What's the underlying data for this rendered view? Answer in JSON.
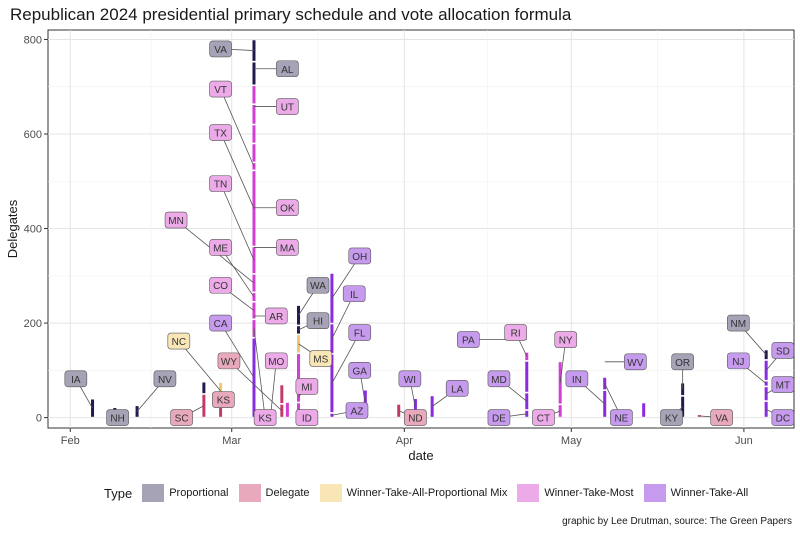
{
  "title": "Republican 2024 presidential primary schedule and vote allocation formula",
  "caption": "graphic by Lee Drutman, source: The Green Papers",
  "colors": {
    "Proportional": "#211a4e",
    "Delegate": "#c43b6a",
    "Winner-Take-All-Proportional Mix": "#f1c96a",
    "Winner-Take-Most": "#d23fd2",
    "Winner-Take-All": "#8a2be2"
  },
  "label_fills": {
    "Proportional": "#a6a3b6",
    "Delegate": "#e8a9bc",
    "Winner-Take-All-Proportional Mix": "#f8e6b6",
    "Winner-Take-Most": "#ecabe8",
    "Winner-Take-All": "#c69bee"
  },
  "legend": {
    "title": "Type",
    "items": [
      "Proportional",
      "Delegate",
      "Winner-Take-All-Proportional Mix",
      "Winner-Take-Most",
      "Winner-Take-All"
    ]
  },
  "chart_data": {
    "type": "bar",
    "title": "Republican 2024 presidential primary schedule and vote allocation formula",
    "xlabel": "date",
    "ylabel": "Delegates",
    "xlim_days": [
      -4,
      130
    ],
    "ylim": [
      -22,
      820
    ],
    "x_ticks": [
      {
        "label": "Feb",
        "day": 0
      },
      {
        "label": "Mar",
        "day": 29
      },
      {
        "label": "Apr",
        "day": 60
      },
      {
        "label": "May",
        "day": 90
      },
      {
        "label": "Jun",
        "day": 121
      }
    ],
    "y_ticks": [
      0,
      200,
      400,
      600,
      800
    ],
    "note": "day = days since Feb 1, 2024; each state is a stacked segment on its primary date",
    "segments": [
      {
        "state": "IA",
        "day": 4,
        "y0": 0,
        "y1": 40,
        "type": "Proportional",
        "label_day": 1,
        "label_y": 82
      },
      {
        "state": "NH",
        "day": 8,
        "y0": 0,
        "y1": 22,
        "type": "Proportional",
        "label_day": 8.5,
        "label_y": 0
      },
      {
        "state": "NV",
        "day": 12,
        "y0": 0,
        "y1": 26,
        "type": "Proportional",
        "label_day": 17,
        "label_y": 82
      },
      {
        "state": "SC",
        "day": 24,
        "y0": 0,
        "y1": 50,
        "type": "Delegate",
        "label_day": 20,
        "label_y": 0
      },
      {
        "state": "NV",
        "day": 24,
        "y0": 50,
        "y1": 76,
        "type": "Proportional",
        "label_day": null,
        "label_y": null
      },
      {
        "state": "KS",
        "day": 27,
        "y0": 0,
        "y1": 38,
        "type": "Delegate",
        "label_day": 27.5,
        "label_y": 38
      },
      {
        "state": "NC",
        "day": 27,
        "y0": 38,
        "y1": 75,
        "type": "Winner-Take-All-Proportional Mix",
        "label_day": 19.5,
        "label_y": 162
      },
      {
        "state": "CA",
        "day": 33,
        "y0": 0,
        "y1": 169,
        "type": "Winner-Take-All",
        "label_day": 27,
        "label_y": 200
      },
      {
        "state": "KS",
        "day": 33,
        "y0": 169,
        "y1": 208,
        "type": "Winner-Take-Most",
        "label_day": 35,
        "label_y": 0
      },
      {
        "state": "CO",
        "day": 33,
        "y0": 208,
        "y1": 245,
        "type": "Winner-Take-Most",
        "label_day": 27,
        "label_y": 280
      },
      {
        "state": "ME",
        "day": 33,
        "y0": 245,
        "y1": 265,
        "type": "Winner-Take-Most",
        "label_day": 27,
        "label_y": 360
      },
      {
        "state": "MN",
        "day": 33,
        "y0": 265,
        "y1": 304,
        "type": "Winner-Take-Most",
        "label_day": 19,
        "label_y": 418
      },
      {
        "state": "TN",
        "day": 33,
        "y0": 304,
        "y1": 362,
        "type": "Winner-Take-Most",
        "label_day": 27,
        "label_y": 495
      },
      {
        "state": "TX",
        "day": 33,
        "y0": 362,
        "y1": 523,
        "type": "Winner-Take-Most",
        "label_day": 27,
        "label_y": 603
      },
      {
        "state": "VT",
        "day": 33,
        "y0": 523,
        "y1": 540,
        "type": "Winner-Take-Most",
        "label_day": 27,
        "label_y": 695
      },
      {
        "state": "UT",
        "day": 33,
        "y0": 540,
        "y1": 580,
        "type": "Winner-Take-Most",
        "label_day": null,
        "label_y": null
      },
      {
        "state": "AR",
        "day": 33,
        "y0": 580,
        "y1": 620,
        "type": "Winner-Take-Most",
        "label_day": null,
        "label_y": null
      },
      {
        "state": "OK",
        "day": 33,
        "y0": 620,
        "y1": 663,
        "type": "Winner-Take-Most",
        "label_day": null,
        "label_y": null
      },
      {
        "state": "MA",
        "day": 33,
        "y0": 663,
        "y1": 703,
        "type": "Winner-Take-Most",
        "label_day": null,
        "label_y": null
      },
      {
        "state": "AL",
        "day": 33,
        "y0": 703,
        "y1": 753,
        "type": "Proportional",
        "label_day": null,
        "label_y": null
      },
      {
        "state": "VA",
        "day": 33,
        "y0": 753,
        "y1": 800,
        "type": "Proportional",
        "label_day": 27,
        "label_y": 780
      },
      {
        "state": "UT-lbl",
        "day": 33,
        "y0": 0,
        "y1": 0,
        "type": "Winner-Take-Most",
        "label_day": 39,
        "label_y": 658
      },
      {
        "state": "AL-lbl",
        "day": 33,
        "y0": 0,
        "y1": 0,
        "type": "Proportional",
        "label_day": 39,
        "label_y": 738
      },
      {
        "state": "OK-lbl",
        "day": 33,
        "y0": 0,
        "y1": 0,
        "type": "Winner-Take-Most",
        "label_day": 39,
        "label_y": 444
      },
      {
        "state": "MA-lbl",
        "day": 33,
        "y0": 0,
        "y1": 0,
        "type": "Winner-Take-Most",
        "label_day": 39,
        "label_y": 360
      },
      {
        "state": "AR-lbl",
        "day": 33,
        "y0": 0,
        "y1": 0,
        "type": "Winner-Take-Most",
        "label_day": 37,
        "label_y": 215
      },
      {
        "state": "MO",
        "day": 36,
        "y0": 0,
        "y1": 12,
        "type": "Winner-Take-Most",
        "label_day": 37,
        "label_y": 120
      },
      {
        "state": "WY",
        "day": 38,
        "y0": 0,
        "y1": 29,
        "type": "Delegate",
        "label_day": 28.5,
        "label_y": 120
      },
      {
        "state": "ND",
        "day": 38,
        "y0": 29,
        "y1": 70,
        "type": "Delegate",
        "label_day": null,
        "label_y": null
      },
      {
        "state": "DC",
        "day": 39,
        "y0": 0,
        "y1": 33,
        "type": "Winner-Take-Most",
        "label_day": null,
        "label_y": null
      },
      {
        "state": "ID",
        "day": 41,
        "y0": 0,
        "y1": 32,
        "type": "Winner-Take-Most",
        "label_day": 42.5,
        "label_y": 0
      },
      {
        "state": "MI",
        "day": 41,
        "y0": 32,
        "y1": 55,
        "type": "Winner-Take-Most",
        "label_day": 42.5,
        "label_y": 66
      },
      {
        "state": "MS",
        "day": 41,
        "y0": 55,
        "y1": 136,
        "type": "Winner-Take-Most",
        "label_day": null,
        "label_y": null
      },
      {
        "state": "MS-seg",
        "day": 41,
        "y0": 136,
        "y1": 176,
        "type": "Winner-Take-All-Proportional Mix",
        "label_day": 45,
        "label_y": 125
      },
      {
        "state": "HI",
        "day": 41,
        "y0": 176,
        "y1": 195,
        "type": "Proportional",
        "label_day": 44.5,
        "label_y": 205
      },
      {
        "state": "WA",
        "day": 41,
        "y0": 195,
        "y1": 238,
        "type": "Proportional",
        "label_day": 44.5,
        "label_y": 280
      },
      {
        "state": "AZ",
        "day": 47,
        "y0": 0,
        "y1": 10,
        "type": "Winner-Take-All",
        "label_day": 51.5,
        "label_y": 15
      },
      {
        "state": "FL",
        "day": 47,
        "y0": 10,
        "y1": 135,
        "type": "Winner-Take-All",
        "label_day": 52,
        "label_y": 180
      },
      {
        "state": "IL",
        "day": 47,
        "y0": 135,
        "y1": 199,
        "type": "Winner-Take-All",
        "label_day": 51,
        "label_y": 262
      },
      {
        "state": "OH",
        "day": 47,
        "y0": 199,
        "y1": 306,
        "type": "Winner-Take-All",
        "label_day": 52,
        "label_y": 342
      },
      {
        "state": "GA",
        "day": 53,
        "y0": 0,
        "y1": 59,
        "type": "Winner-Take-All",
        "label_day": 52,
        "label_y": 100
      },
      {
        "state": "MS-pt",
        "day": 55,
        "y0": 0,
        "y1": 0,
        "type": "Winner-Take-All",
        "label_day": null,
        "label_y": null
      },
      {
        "state": "ND",
        "day": 59,
        "y0": 0,
        "y1": 29,
        "type": "Delegate",
        "label_day": 62,
        "label_y": 0
      },
      {
        "state": "DC2",
        "day": 61,
        "y0": 0,
        "y1": 19,
        "type": "Delegate",
        "label_day": null,
        "label_y": null
      },
      {
        "state": "WI",
        "day": 62,
        "y0": 0,
        "y1": 41,
        "type": "Winner-Take-All",
        "label_day": 61,
        "label_y": 82
      },
      {
        "state": "LA",
        "day": 65,
        "y0": 0,
        "y1": 47,
        "type": "Winner-Take-All",
        "label_day": 69.5,
        "label_y": 62
      },
      {
        "state": "PA",
        "day": 82,
        "y0": 0,
        "y1": 0,
        "type": "Winner-Take-All",
        "label_day": 71.5,
        "label_y": 165
      },
      {
        "state": "DE",
        "day": 82,
        "y0": 0,
        "y1": 16,
        "type": "Winner-Take-All",
        "label_day": 77,
        "label_y": 0
      },
      {
        "state": "MD",
        "day": 82,
        "y0": 16,
        "y1": 53,
        "type": "Winner-Take-All",
        "label_day": 77,
        "label_y": 82
      },
      {
        "state": "PA-seg",
        "day": 82,
        "y0": 53,
        "y1": 120,
        "type": "Winner-Take-All",
        "label_day": null,
        "label_y": null
      },
      {
        "state": "RI",
        "day": 82,
        "y0": 120,
        "y1": 139,
        "type": "Winner-Take-Most",
        "label_day": 80,
        "label_y": 180
      },
      {
        "state": "CT",
        "day": 88,
        "y0": 0,
        "y1": 28,
        "type": "Winner-Take-Most",
        "label_day": 85,
        "label_y": 0
      },
      {
        "state": "NY",
        "day": 88,
        "y0": 28,
        "y1": 119,
        "type": "Winner-Take-Most",
        "label_day": 89,
        "label_y": 165
      },
      {
        "state": "IN",
        "day": 96,
        "y0": 0,
        "y1": 58,
        "type": "Winner-Take-All",
        "label_day": 91,
        "label_y": 82
      },
      {
        "state": "NE",
        "day": 96,
        "y0": 58,
        "y1": 86,
        "type": "Winner-Take-All",
        "label_day": 99,
        "label_y": 0
      },
      {
        "state": "WV",
        "day": 96,
        "y0": 0,
        "y1": 0,
        "type": "Winner-Take-All",
        "label_day": 101.5,
        "label_y": 118
      },
      {
        "state": "WV-seg",
        "day": 103,
        "y0": 0,
        "y1": 32,
        "type": "Winner-Take-All",
        "label_day": null,
        "label_y": null
      },
      {
        "state": "KY",
        "day": 110,
        "y0": 0,
        "y1": 46,
        "type": "Proportional",
        "label_day": 108,
        "label_y": 0
      },
      {
        "state": "OR",
        "day": 110,
        "y0": 46,
        "y1": 74,
        "type": "Proportional",
        "label_day": 110,
        "label_y": 118
      },
      {
        "state": "VA",
        "day": 113,
        "y0": 0,
        "y1": 7,
        "type": "Delegate",
        "label_day": 117,
        "label_y": 0
      },
      {
        "state": "DC",
        "day": 125,
        "y0": 0,
        "y1": 35,
        "type": "Winner-Take-All",
        "label_day": 128,
        "label_y": 0
      },
      {
        "state": "MT",
        "day": 125,
        "y0": 35,
        "y1": 66,
        "type": "Winner-Take-All",
        "label_day": 128,
        "label_y": 70
      },
      {
        "state": "NJ",
        "day": 125,
        "y0": 66,
        "y1": 78,
        "type": "Winner-Take-All",
        "label_day": 120,
        "label_y": 120
      },
      {
        "state": "SD",
        "day": 125,
        "y0": 78,
        "y1": 122,
        "type": "Winner-Take-All",
        "label_day": 128,
        "label_y": 142
      },
      {
        "state": "NM",
        "day": 125,
        "y0": 122,
        "y1": 144,
        "type": "Proportional",
        "label_day": 120,
        "label_y": 200
      }
    ]
  }
}
